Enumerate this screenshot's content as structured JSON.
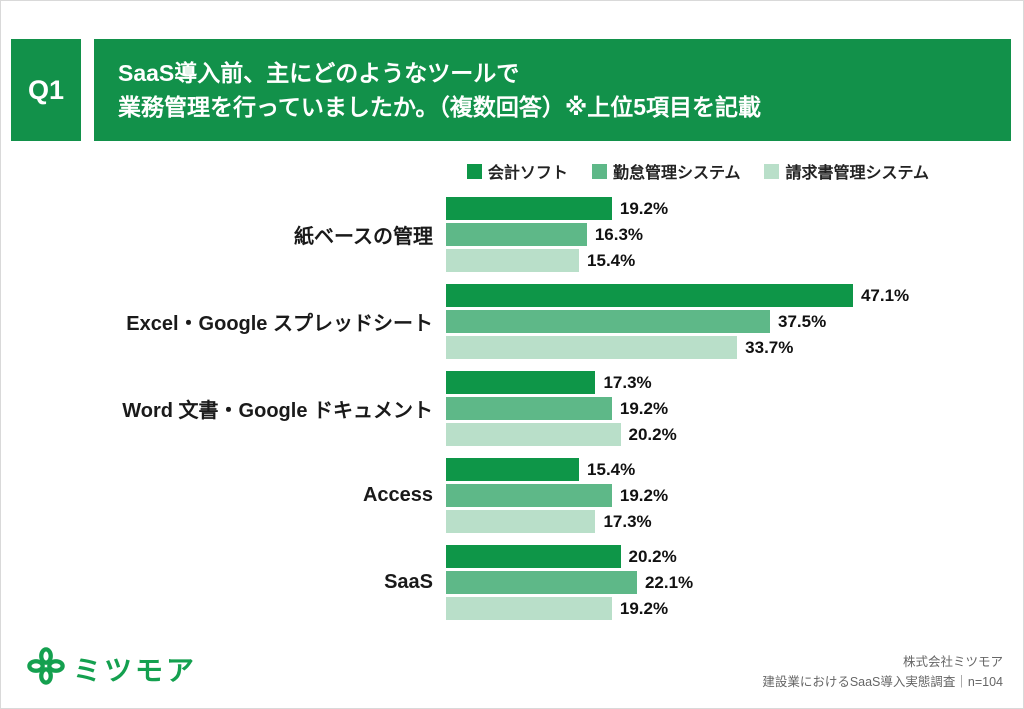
{
  "page": {
    "q_label": "Q1",
    "title_line1": "SaaS導入前、主にどのようなツールで",
    "title_line2": "業務管理を行っていましたか。（複数回答）※上位5項目を記載"
  },
  "colors": {
    "header_green": "#12914a",
    "series_dark": "#0e9648",
    "series_mid": "#5eb888",
    "series_light": "#b9dfc9"
  },
  "chart_data": {
    "type": "bar",
    "orientation": "horizontal",
    "title": "SaaS導入前、主にどのようなツールで業務管理を行っていましたか。（複数回答）※上位5項目を記載",
    "categories": [
      "紙ベースの管理",
      "Excel・Google スプレッドシート",
      "Word 文書・Google ドキュメント",
      "Access",
      "SaaS"
    ],
    "series": [
      {
        "name": "会計ソフト",
        "color": "#0e9648",
        "values": [
          19.2,
          47.1,
          17.3,
          15.4,
          20.2
        ]
      },
      {
        "name": "勤怠管理システム",
        "color": "#5eb888",
        "values": [
          16.3,
          37.5,
          19.2,
          19.2,
          22.1
        ]
      },
      {
        "name": "請求書管理システム",
        "color": "#b9dfc9",
        "values": [
          15.4,
          33.7,
          20.2,
          17.3,
          19.2
        ]
      }
    ],
    "value_suffix": "%",
    "xlim": [
      0,
      50
    ],
    "grid": false,
    "legend_position": "top-right"
  },
  "footer": {
    "logo_text": "ミツモア",
    "logo_icon": "clover-flower-icon",
    "company": "株式会社ミツモア",
    "survey": "建設業におけるSaaS導入実態調査｜n=104"
  }
}
